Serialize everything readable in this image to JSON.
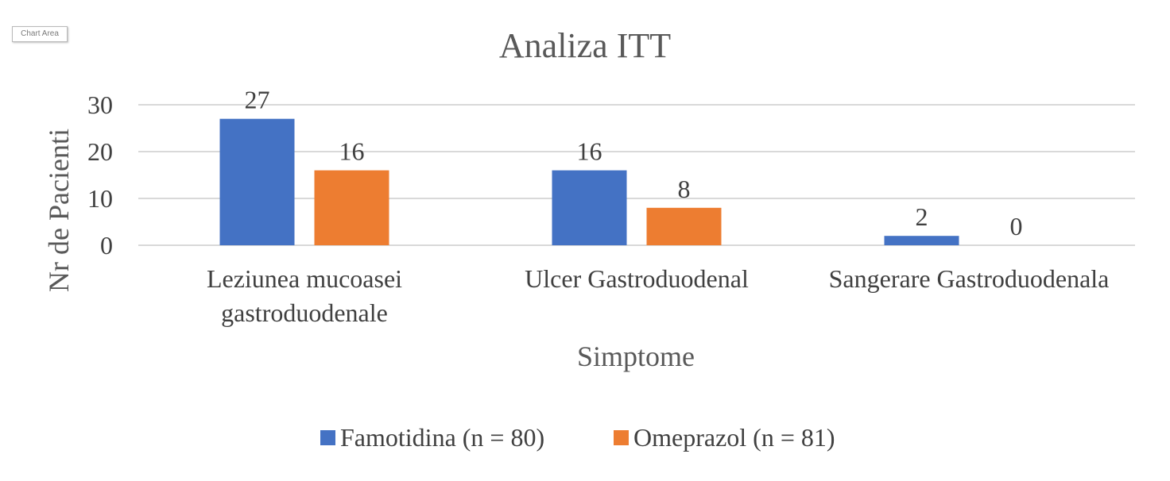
{
  "ui": {
    "chart_area_tag": "Chart Area"
  },
  "chart_data": {
    "type": "bar",
    "title": "Analiza ITT",
    "xlabel": "Simptome",
    "ylabel": "Nr de  Pacienti",
    "ylim": [
      0,
      30
    ],
    "yticks": [
      0,
      10,
      20,
      30
    ],
    "grid": true,
    "legend_position": "bottom",
    "categories": [
      [
        "Leziunea mucoasei",
        "gastroduodenale"
      ],
      [
        "Ulcer Gastroduodenal"
      ],
      [
        "Sangerare Gastroduodenala"
      ]
    ],
    "series": [
      {
        "name": "Famotidina (n = 80)",
        "color": "#4472C4",
        "values": [
          27,
          16,
          2
        ]
      },
      {
        "name": "Omeprazol (n = 81)",
        "color": "#ED7D31",
        "values": [
          16,
          8,
          0
        ]
      }
    ]
  }
}
